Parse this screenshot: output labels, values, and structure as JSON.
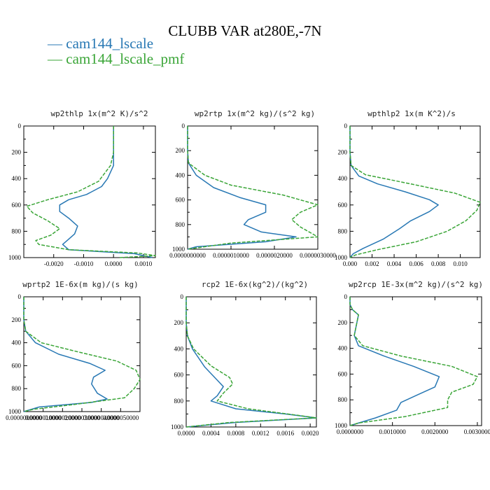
{
  "title": "CLUBB VAR at280E,-7N",
  "legend": [
    {
      "label": "cam144_lscale",
      "color": "#2878b4"
    },
    {
      "label": "cam144_lscale_pmf",
      "color": "#3aa537"
    }
  ],
  "chart_data": [
    {
      "type": "line",
      "title": "wp2thlp  1x(m^2 K)/s^2",
      "xlim": [
        -0.003,
        0.0014
      ],
      "ylim": [
        1000,
        0
      ],
      "ylabel_ticks": [
        "0",
        "200",
        "400",
        "600",
        "800",
        "1000"
      ],
      "xticks": [
        -0.002,
        -0.001,
        0.0,
        0.001
      ],
      "xtick_labels": [
        "-0.0020",
        "-0.0010",
        "0.0000",
        "0.0010"
      ],
      "series": [
        {
          "values": [
            [
              0.0,
              0
            ],
            [
              0.0,
              100
            ],
            [
              0.0,
              200
            ],
            [
              0.0,
              300
            ],
            [
              -0.0002,
              400
            ],
            [
              -0.0004,
              460
            ],
            [
              -0.0009,
              520
            ],
            [
              -0.0015,
              560
            ],
            [
              -0.0018,
              600
            ],
            [
              -0.0018,
              650
            ],
            [
              -0.0015,
              700
            ],
            [
              -0.0012,
              760
            ],
            [
              -0.0013,
              820
            ],
            [
              -0.0015,
              860
            ],
            [
              -0.0017,
              900
            ],
            [
              -0.0015,
              940
            ],
            [
              0.0007,
              970
            ],
            [
              0.0013,
              1000
            ]
          ]
        },
        {
          "values": [
            [
              0.0,
              0
            ],
            [
              0.0,
              100
            ],
            [
              0.0,
              200
            ],
            [
              -0.0001,
              300
            ],
            [
              -0.0005,
              420
            ],
            [
              -0.0012,
              500
            ],
            [
              -0.0022,
              560
            ],
            [
              -0.0029,
              610
            ],
            [
              -0.0027,
              660
            ],
            [
              -0.0022,
              720
            ],
            [
              -0.0018,
              780
            ],
            [
              -0.0021,
              830
            ],
            [
              -0.0026,
              870
            ],
            [
              -0.0025,
              900
            ],
            [
              -0.0015,
              940
            ],
            [
              0.0008,
              965
            ],
            [
              0.0014,
              985
            ],
            [
              0.0002,
              1000
            ]
          ]
        }
      ]
    },
    {
      "type": "line",
      "title": "wp2rtp  1x(m^2 kg)/(s^2 kg)",
      "xlim": [
        0,
        3e-06
      ],
      "ylim": [
        1000,
        0
      ],
      "ylabel_ticks": [
        "0",
        "200",
        "400",
        "600",
        "800",
        "1000"
      ],
      "xticks": [
        0,
        1e-06,
        2e-06,
        3e-06
      ],
      "xtick_labels": [
        "0.0000000000",
        "0.0000010000",
        "0.0000020000",
        "0.0000030000"
      ],
      "series": [
        {
          "values": [
            [
              0,
              0
            ],
            [
              0,
              100
            ],
            [
              0,
              200
            ],
            [
              2e-08,
              300
            ],
            [
              2e-07,
              400
            ],
            [
              6e-07,
              500
            ],
            [
              1.2e-06,
              580
            ],
            [
              1.8e-06,
              640
            ],
            [
              1.8e-06,
              700
            ],
            [
              1.4e-06,
              760
            ],
            [
              1.3e-06,
              800
            ],
            [
              1.7e-06,
              860
            ],
            [
              2.5e-06,
              900
            ],
            [
              1.8e-06,
              940
            ],
            [
              2e-07,
              980
            ],
            [
              0,
              1000
            ]
          ]
        },
        {
          "values": [
            [
              0,
              0
            ],
            [
              0,
              100
            ],
            [
              0,
              200
            ],
            [
              2e-08,
              300
            ],
            [
              4e-07,
              400
            ],
            [
              1e-06,
              480
            ],
            [
              2.2e-06,
              560
            ],
            [
              3e-06,
              640
            ],
            [
              2.6e-06,
              700
            ],
            [
              2.4e-06,
              760
            ],
            [
              2.6e-06,
              820
            ],
            [
              3e-06,
              900
            ],
            [
              1e-06,
              950
            ],
            [
              0,
              1000
            ]
          ]
        }
      ]
    },
    {
      "type": "line",
      "title": "wpthlp2  1x(m K^2)/s",
      "xlim": [
        0,
        0.0118
      ],
      "ylim": [
        1000,
        0
      ],
      "ylabel_ticks": [
        "0",
        "200",
        "400",
        "600",
        "800",
        "1000"
      ],
      "xticks": [
        0,
        0.002,
        0.004,
        0.006,
        0.008,
        0.01
      ],
      "xtick_labels": [
        "0.000",
        "0.002",
        "0.004",
        "0.006",
        "0.008",
        "0.010"
      ],
      "series": [
        {
          "values": [
            [
              0,
              0
            ],
            [
              0,
              100
            ],
            [
              0,
              200
            ],
            [
              0.0001,
              300
            ],
            [
              0.0008,
              380
            ],
            [
              0.0025,
              440
            ],
            [
              0.005,
              500
            ],
            [
              0.0072,
              560
            ],
            [
              0.008,
              600
            ],
            [
              0.0072,
              650
            ],
            [
              0.0055,
              720
            ],
            [
              0.0045,
              780
            ],
            [
              0.003,
              860
            ],
            [
              0.0012,
              930
            ],
            [
              0.0003,
              970
            ],
            [
              0,
              1000
            ]
          ]
        },
        {
          "values": [
            [
              0,
              0
            ],
            [
              0,
              100
            ],
            [
              0,
              200
            ],
            [
              0.0001,
              300
            ],
            [
              0.0014,
              370
            ],
            [
              0.0055,
              440
            ],
            [
              0.0095,
              510
            ],
            [
              0.0118,
              580
            ],
            [
              0.0115,
              640
            ],
            [
              0.0105,
              720
            ],
            [
              0.0088,
              800
            ],
            [
              0.006,
              880
            ],
            [
              0.0025,
              940
            ],
            [
              0.0005,
              980
            ],
            [
              0,
              1000
            ]
          ]
        }
      ]
    },
    {
      "type": "line",
      "title": "wprtp2  1E-6x(m kg)/(s kg)",
      "xlim": [
        0,
        6e-06
      ],
      "ylim": [
        1000,
        0
      ],
      "ylabel_ticks": [
        "0",
        "200",
        "400",
        "600",
        "800",
        "1000"
      ],
      "xticks": [
        0,
        1e-06,
        2e-06,
        3e-06,
        4e-06,
        5e-06
      ],
      "xtick_labels": [
        "0.0000000000",
        "0.0000010000",
        "0.0000020000",
        "0.0000030000",
        "0.0000040000",
        "0.0000050000"
      ],
      "series": [
        {
          "values": [
            [
              0,
              0
            ],
            [
              0,
              100
            ],
            [
              0,
              200
            ],
            [
              1e-07,
              300
            ],
            [
              6e-07,
              400
            ],
            [
              1.8e-06,
              500
            ],
            [
              3.4e-06,
              580
            ],
            [
              4.2e-06,
              640
            ],
            [
              3.6e-06,
              700
            ],
            [
              3.5e-06,
              760
            ],
            [
              3.8e-06,
              840
            ],
            [
              4.3e-06,
              890
            ],
            [
              3.5e-06,
              920
            ],
            [
              8e-07,
              960
            ],
            [
              0,
              1000
            ]
          ]
        },
        {
          "values": [
            [
              0,
              0
            ],
            [
              0,
              100
            ],
            [
              0,
              200
            ],
            [
              1e-07,
              300
            ],
            [
              9e-07,
              400
            ],
            [
              2.8e-06,
              480
            ],
            [
              4.8e-06,
              560
            ],
            [
              5.8e-06,
              640
            ],
            [
              6e-06,
              720
            ],
            [
              5.7e-06,
              800
            ],
            [
              5.2e-06,
              880
            ],
            [
              2.5e-06,
              940
            ],
            [
              5e-07,
              980
            ],
            [
              0,
              1000
            ]
          ]
        }
      ]
    },
    {
      "type": "line",
      "title": "rcp2  1E-6x(kg^2)/(kg^2)",
      "xlim": [
        0,
        0.0021
      ],
      "ylim": [
        1000,
        0
      ],
      "ylabel_ticks": [
        "0",
        "200",
        "400",
        "600",
        "800",
        "1000"
      ],
      "xticks": [
        0,
        0.0004,
        0.0008,
        0.0012,
        0.0016,
        0.002
      ],
      "xtick_labels": [
        "0.0000",
        "0.0004",
        "0.0008",
        "0.0012",
        "0.0016",
        "0.0020"
      ],
      "series": [
        {
          "values": [
            [
              0,
              0
            ],
            [
              0,
              100
            ],
            [
              0,
              200
            ],
            [
              2e-05,
              300
            ],
            [
              0.0001,
              400
            ],
            [
              0.0003,
              540
            ],
            [
              0.0005,
              640
            ],
            [
              0.0006,
              690
            ],
            [
              0.0005,
              760
            ],
            [
              0.0004,
              800
            ],
            [
              0.0008,
              860
            ],
            [
              0.0016,
              900
            ],
            [
              0.0021,
              930
            ],
            [
              0.0008,
              965
            ],
            [
              0,
              1000
            ]
          ]
        },
        {
          "values": [
            [
              0,
              0
            ],
            [
              0,
              100
            ],
            [
              0,
              200
            ],
            [
              2e-05,
              300
            ],
            [
              0.00012,
              400
            ],
            [
              0.0004,
              530
            ],
            [
              0.0007,
              620
            ],
            [
              0.00075,
              670
            ],
            [
              0.0006,
              740
            ],
            [
              0.0005,
              800
            ],
            [
              0.001,
              860
            ],
            [
              0.0018,
              910
            ],
            [
              0.0021,
              930
            ],
            [
              0.0007,
              965
            ],
            [
              0,
              1000
            ]
          ]
        }
      ]
    },
    {
      "type": "line",
      "title": "wp2rcp  1E-3x(m^2 kg)/(s^2 kg)",
      "xlim": [
        0,
        0.0031
      ],
      "ylim": [
        1000,
        0
      ],
      "ylabel_ticks": [
        "0",
        "200",
        "400",
        "600",
        "800",
        "1000"
      ],
      "xticks": [
        0,
        0.001,
        0.002,
        0.003
      ],
      "xtick_labels": [
        "0.0000000",
        "0.0010000",
        "0.0020000",
        "0.0030000"
      ],
      "series": [
        {
          "values": [
            [
              0,
              0
            ],
            [
              0,
              60
            ],
            [
              6e-05,
              100
            ],
            [
              0.0002,
              140
            ],
            [
              0.00015,
              220
            ],
            [
              0.0001,
              300
            ],
            [
              0.0002,
              380
            ],
            [
              0.0008,
              460
            ],
            [
              0.0015,
              540
            ],
            [
              0.0021,
              620
            ],
            [
              0.002,
              700
            ],
            [
              0.0016,
              760
            ],
            [
              0.0012,
              820
            ],
            [
              0.0011,
              880
            ],
            [
              0.0006,
              940
            ],
            [
              0,
              1000
            ]
          ]
        },
        {
          "values": [
            [
              0,
              0
            ],
            [
              0,
              60
            ],
            [
              6e-05,
              100
            ],
            [
              0.0002,
              140
            ],
            [
              0.00015,
              220
            ],
            [
              0.0001,
              300
            ],
            [
              0.0003,
              380
            ],
            [
              0.0012,
              460
            ],
            [
              0.0024,
              540
            ],
            [
              0.003,
              620
            ],
            [
              0.0029,
              680
            ],
            [
              0.0024,
              740
            ],
            [
              0.0023,
              800
            ],
            [
              0.0023,
              860
            ],
            [
              0.0013,
              930
            ],
            [
              0.0002,
              980
            ],
            [
              0,
              1000
            ]
          ]
        }
      ]
    }
  ]
}
